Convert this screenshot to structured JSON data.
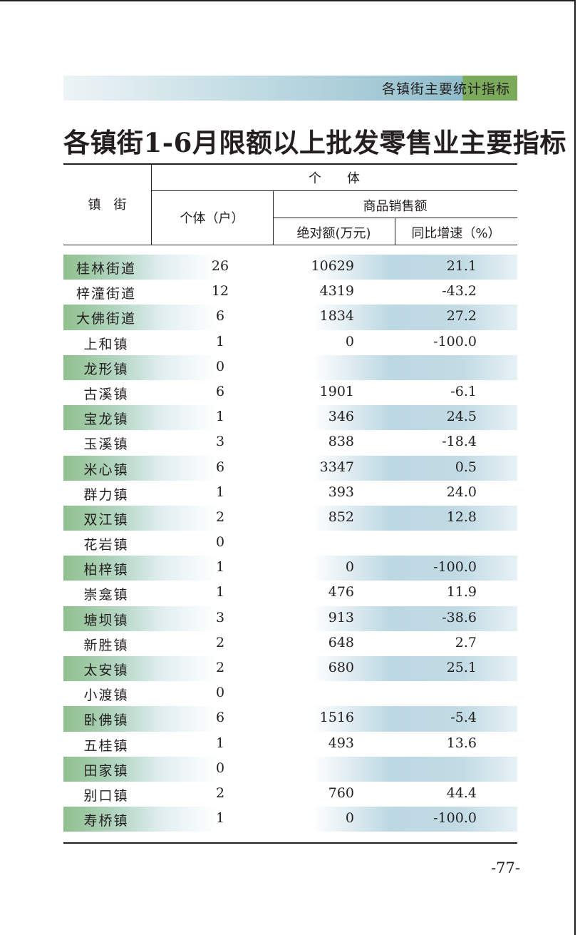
{
  "section_banner": "各镇街主要统计指标",
  "page_title": "各镇街1-6月限额以上批发零售业主要指标",
  "table": {
    "headers": {
      "town": "镇　街",
      "individual": "个　　体",
      "households": "个体（户）",
      "sales": "商品销售额",
      "absolute": "绝对额(万元)",
      "yoy": "同比增速（%）"
    },
    "rows": [
      {
        "name": "桂林街道",
        "households": "26",
        "absolute": "10629",
        "yoy": "21.1"
      },
      {
        "name": "梓潼街道",
        "households": "12",
        "absolute": "4319",
        "yoy": "-43.2"
      },
      {
        "name": "大佛街道",
        "households": "6",
        "absolute": "1834",
        "yoy": "27.2"
      },
      {
        "name": "上和镇",
        "households": "1",
        "absolute": "0",
        "yoy": "-100.0"
      },
      {
        "name": "龙形镇",
        "households": "0",
        "absolute": "",
        "yoy": ""
      },
      {
        "name": "古溪镇",
        "households": "6",
        "absolute": "1901",
        "yoy": "-6.1"
      },
      {
        "name": "宝龙镇",
        "households": "1",
        "absolute": "346",
        "yoy": "24.5"
      },
      {
        "name": "玉溪镇",
        "households": "3",
        "absolute": "838",
        "yoy": "-18.4"
      },
      {
        "name": "米心镇",
        "households": "6",
        "absolute": "3347",
        "yoy": "0.5"
      },
      {
        "name": "群力镇",
        "households": "1",
        "absolute": "393",
        "yoy": "24.0"
      },
      {
        "name": "双江镇",
        "households": "2",
        "absolute": "852",
        "yoy": "12.8"
      },
      {
        "name": "花岩镇",
        "households": "0",
        "absolute": "",
        "yoy": ""
      },
      {
        "name": "柏梓镇",
        "households": "1",
        "absolute": "0",
        "yoy": "-100.0"
      },
      {
        "name": "崇龛镇",
        "households": "1",
        "absolute": "476",
        "yoy": "11.9"
      },
      {
        "name": "塘坝镇",
        "households": "3",
        "absolute": "913",
        "yoy": "-38.6"
      },
      {
        "name": "新胜镇",
        "households": "2",
        "absolute": "648",
        "yoy": "2.7"
      },
      {
        "name": "太安镇",
        "households": "2",
        "absolute": "680",
        "yoy": "25.1"
      },
      {
        "name": "小渡镇",
        "households": "0",
        "absolute": "",
        "yoy": ""
      },
      {
        "name": "卧佛镇",
        "households": "6",
        "absolute": "1516",
        "yoy": "-5.4"
      },
      {
        "name": "五桂镇",
        "households": "1",
        "absolute": "493",
        "yoy": "13.6"
      },
      {
        "name": "田家镇",
        "households": "0",
        "absolute": "",
        "yoy": ""
      },
      {
        "name": "别口镇",
        "households": "2",
        "absolute": "760",
        "yoy": "44.4"
      },
      {
        "name": "寿桥镇",
        "households": "1",
        "absolute": "0",
        "yoy": "-100.0"
      }
    ]
  },
  "page_number": "-77-",
  "colors": {
    "banner_green": "#7bab5a",
    "banner_blue": "#9fc6d3",
    "row_green": "#8ec08c",
    "row_blue": "#bcd8e3"
  }
}
